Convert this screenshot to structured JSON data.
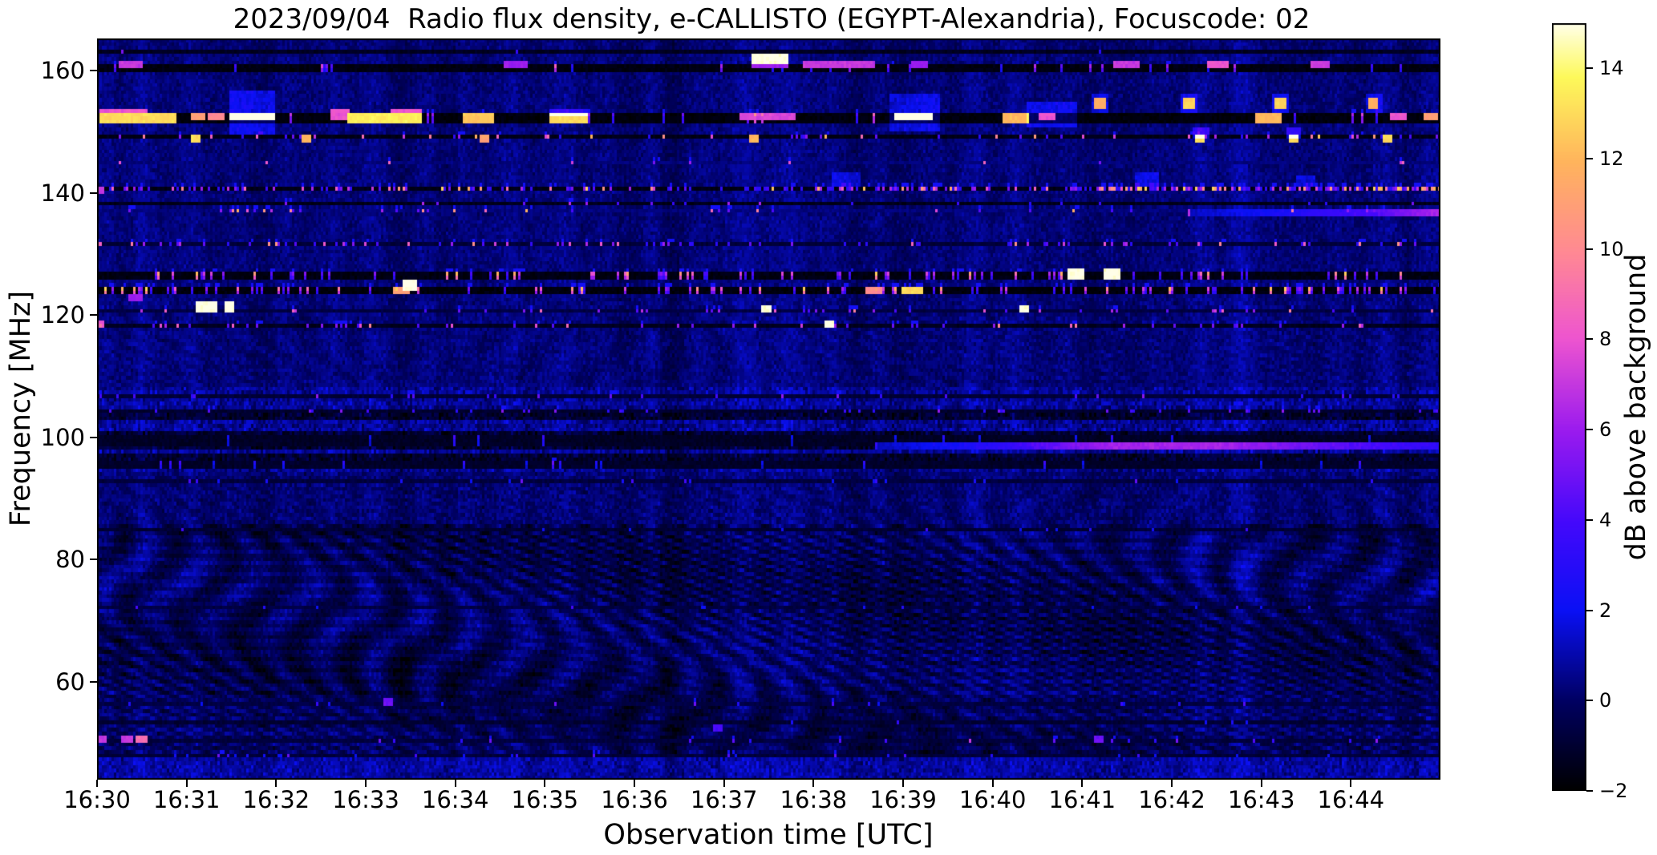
{
  "figure": {
    "background": "#ffffff"
  },
  "chart_data": {
    "type": "heatmap",
    "subtype": "radio-spectrogram",
    "title": "2023/09/04  Radio flux density, e-CALLISTO (EGYPT-Alexandria), Focuscode: 02",
    "xlabel": "Observation time [UTC]",
    "ylabel": "Frequency [MHz]",
    "x_ticks": [
      "16:30",
      "16:31",
      "16:32",
      "16:33",
      "16:34",
      "16:35",
      "16:36",
      "16:37",
      "16:38",
      "16:39",
      "16:40",
      "16:41",
      "16:42",
      "16:43",
      "16:44"
    ],
    "x_tick_minutes": [
      0,
      1,
      2,
      3,
      4,
      5,
      6,
      7,
      8,
      9,
      10,
      11,
      12,
      13,
      14
    ],
    "time_range": [
      "16:30",
      "16:45"
    ],
    "y_ticks": [
      "160",
      "140",
      "120",
      "100",
      "80",
      "60"
    ],
    "y_tick_values": [
      160,
      140,
      120,
      100,
      80,
      60
    ],
    "freq_range_mhz": [
      44.0,
      165.3
    ],
    "grid": false,
    "colorbar": {
      "label": "dB above background",
      "ticks": [
        "14",
        "12",
        "10",
        "8",
        "6",
        "4",
        "2",
        "0",
        "−2"
      ],
      "tick_values": [
        14,
        12,
        10,
        8,
        6,
        4,
        2,
        0,
        -2
      ],
      "value_range_db": [
        -2,
        15
      ],
      "colormap": "gnuplot2-like (black-blue-violet-magenta-salmon-orange-yellow-white)",
      "stops": [
        [
          0.0,
          "#000000"
        ],
        [
          0.115,
          "#000060"
        ],
        [
          0.235,
          "#0a10f5"
        ],
        [
          0.35,
          "#4408fb"
        ],
        [
          0.47,
          "#9b1bee"
        ],
        [
          0.59,
          "#ee55cf"
        ],
        [
          0.7,
          "#ff8894"
        ],
        [
          0.82,
          "#ffb45c"
        ],
        [
          0.93,
          "#fdf95a"
        ],
        [
          1.0,
          "#ffffe8"
        ]
      ]
    },
    "background_noise_db": {
      "mean": 0.28,
      "sigma": 0.5
    },
    "moire_interference": {
      "below_mhz": 86,
      "weak_bands_mhz": [
        [
          86,
          94.5
        ],
        [
          108,
          122
        ]
      ],
      "amplitude_db": 0.95
    },
    "striped_noise_band_mhz": [
      94.5,
      108
    ],
    "bright_bottom_band_mhz": [
      44.0,
      48.3
    ],
    "rfi_lines": [
      {
        "f": 162.9,
        "rows": 1,
        "base": -1.6,
        "density": 0.01,
        "dv": [
          3,
          6
        ]
      },
      {
        "f": 161.0,
        "rows": 2,
        "base": -1.9,
        "density": 0.05,
        "dv": [
          3,
          9
        ]
      },
      {
        "f": 152.4,
        "rows": 3,
        "base": -2.0,
        "density": 0.05,
        "dv": [
          4,
          11
        ]
      },
      {
        "f": 149.0,
        "rows": 1,
        "base": -1.8,
        "density": 0.12,
        "dv": [
          3,
          13
        ]
      },
      {
        "f": 145.0,
        "rows": 1,
        "base": 0.1,
        "density": 0.02,
        "dv": [
          5,
          11
        ]
      },
      {
        "f": 140.7,
        "rows": 1,
        "base": -1.8,
        "density": 0.3,
        "dv": [
          3,
          13
        ],
        "dense": [
          [
            8,
            9.6
          ],
          [
            10.8,
            15
          ]
        ]
      },
      {
        "f": 138.3,
        "rows": 1,
        "base": -1.7,
        "density": 0.03,
        "dv": [
          3,
          7
        ]
      },
      {
        "f": 137.0,
        "rows": 1,
        "base": 0.1,
        "density": 0.07,
        "dv": [
          4,
          12
        ],
        "dense": [
          [
            1.8,
            4.2
          ]
        ]
      },
      {
        "f": 131.4,
        "rows": 1,
        "base": -1.1,
        "density": 0.16,
        "dv": [
          3,
          11
        ]
      },
      {
        "f": 127.0,
        "rows": 2,
        "base": -1.9,
        "density": 0.17,
        "dv": [
          4,
          13
        ]
      },
      {
        "f": 124.1,
        "rows": 2,
        "base": -2.0,
        "density": 0.2,
        "dv": [
          4,
          13
        ]
      },
      {
        "f": 120.8,
        "rows": 1,
        "base": -0.9,
        "density": 0.08,
        "dv": [
          4,
          10
        ]
      },
      {
        "f": 118.4,
        "rows": 1,
        "base": -1.6,
        "density": 0.1,
        "dv": [
          4,
          10
        ]
      },
      {
        "f": 106.9,
        "rows": 1,
        "base": -1.1,
        "density": 0.06,
        "dv": [
          3,
          6
        ]
      },
      {
        "f": 104.3,
        "rows": 1,
        "base": -1.3,
        "density": 0.06,
        "dv": [
          3,
          6
        ]
      },
      {
        "f": 99.4,
        "rows": 3,
        "base": -1.5,
        "density": 0.03,
        "dv": [
          2,
          4
        ]
      },
      {
        "f": 95.9,
        "rows": 2,
        "base": -1.4,
        "density": 0.03,
        "dv": [
          2,
          5
        ]
      },
      {
        "f": 93.1,
        "rows": 1,
        "base": -1.0,
        "density": 0.03,
        "dv": [
          2,
          5
        ]
      },
      {
        "f": 84.8,
        "rows": 1,
        "base": -1.2,
        "density": 0.02,
        "dv": [
          2,
          4
        ]
      },
      {
        "f": 72.2,
        "rows": 1,
        "base": -0.9,
        "density": 0.02,
        "dv": [
          2,
          4
        ]
      },
      {
        "f": 56.6,
        "rows": 1,
        "base": -0.9,
        "density": 0.03,
        "dv": [
          2,
          5
        ]
      },
      {
        "f": 53.5,
        "rows": 1,
        "base": -1.2,
        "density": 0.02,
        "dv": [
          2,
          4
        ]
      },
      {
        "f": 50.6,
        "rows": 1,
        "base": -1.0,
        "density": 0.05,
        "dv": [
          3,
          8
        ]
      },
      {
        "f": 47.9,
        "rows": 1,
        "base": -1.1,
        "density": 0.04,
        "dv": [
          2,
          5
        ]
      }
    ],
    "events": [
      [
        0.03,
        0.88,
        151.9,
        152.7,
        13
      ],
      [
        0.03,
        0.55,
        152.7,
        153.3,
        8
      ],
      [
        1.05,
        1.2,
        152.0,
        152.7,
        11
      ],
      [
        1.25,
        1.42,
        152.0,
        152.7,
        10
      ],
      [
        1.5,
        1.98,
        152.3,
        153.0,
        15
      ],
      [
        1.5,
        1.98,
        150.0,
        156.6,
        1.8,
        "add"
      ],
      [
        2.62,
        2.8,
        152.0,
        153.2,
        8
      ],
      [
        2.8,
        3.62,
        151.9,
        152.7,
        13.5
      ],
      [
        3.3,
        3.62,
        152.7,
        153.2,
        8
      ],
      [
        4.1,
        4.42,
        151.9,
        152.6,
        12.5
      ],
      [
        5.08,
        5.48,
        151.9,
        152.6,
        13
      ],
      [
        5.08,
        5.48,
        152.6,
        153.6,
        3,
        "add"
      ],
      [
        7.18,
        7.78,
        152.2,
        152.9,
        7.5
      ],
      [
        8.9,
        9.32,
        152.2,
        152.9,
        14.5
      ],
      [
        8.85,
        9.4,
        150.2,
        156.2,
        1.7,
        "add"
      ],
      [
        10.12,
        10.38,
        151.9,
        152.6,
        12
      ],
      [
        10.38,
        10.92,
        150.8,
        154.6,
        1.7,
        "add"
      ],
      [
        10.52,
        10.68,
        152.2,
        152.9,
        8
      ],
      [
        12.95,
        13.2,
        151.9,
        153.1,
        12
      ],
      [
        14.45,
        14.62,
        152.2,
        152.9,
        8
      ],
      [
        14.82,
        14.96,
        152.0,
        152.8,
        11
      ],
      [
        0.25,
        0.5,
        160.7,
        161.4,
        7
      ],
      [
        4.55,
        4.8,
        160.7,
        161.3,
        6
      ],
      [
        7.33,
        7.7,
        161.3,
        162.3,
        15
      ],
      [
        7.33,
        7.7,
        160.5,
        161.3,
        6
      ],
      [
        7.9,
        8.66,
        160.7,
        161.5,
        7
      ],
      [
        9.1,
        9.25,
        160.7,
        161.3,
        6
      ],
      [
        11.35,
        11.62,
        160.7,
        161.4,
        7
      ],
      [
        12.4,
        12.62,
        160.9,
        161.6,
        8
      ],
      [
        13.55,
        13.75,
        160.7,
        161.3,
        7
      ],
      [
        11.15,
        11.25,
        154.2,
        155.0,
        10
      ],
      [
        11.12,
        11.28,
        153.6,
        155.8,
        1.6,
        "add"
      ],
      [
        12.15,
        12.25,
        154.2,
        155.0,
        11
      ],
      [
        12.12,
        12.28,
        153.6,
        155.8,
        1.8,
        "add"
      ],
      [
        13.17,
        13.27,
        154.2,
        155.0,
        11
      ],
      [
        13.14,
        13.3,
        153.6,
        155.8,
        1.8,
        "add"
      ],
      [
        14.2,
        14.3,
        154.2,
        155.0,
        10
      ],
      [
        14.17,
        14.33,
        153.6,
        155.8,
        1.6,
        "add"
      ],
      [
        1.05,
        1.13,
        148.7,
        149.4,
        13
      ],
      [
        2.3,
        2.38,
        148.7,
        149.4,
        12
      ],
      [
        4.3,
        4.38,
        148.7,
        149.4,
        11
      ],
      [
        7.3,
        7.37,
        148.7,
        149.4,
        12
      ],
      [
        12.28,
        12.36,
        148.7,
        149.4,
        13
      ],
      [
        12.25,
        12.4,
        149.4,
        150.2,
        3,
        "add"
      ],
      [
        13.32,
        13.4,
        148.7,
        149.4,
        13
      ],
      [
        13.3,
        13.44,
        149.4,
        150.2,
        3,
        "add"
      ],
      [
        14.38,
        14.46,
        148.7,
        149.4,
        13
      ],
      [
        1.12,
        1.32,
        120.6,
        121.9,
        15
      ],
      [
        1.44,
        1.52,
        120.6,
        121.9,
        15
      ],
      [
        3.32,
        3.48,
        123.6,
        124.6,
        11
      ],
      [
        3.44,
        3.56,
        124.6,
        125.4,
        15
      ],
      [
        7.42,
        7.5,
        120.8,
        121.6,
        15
      ],
      [
        8.13,
        8.2,
        118.1,
        118.9,
        15
      ],
      [
        10.3,
        10.38,
        120.5,
        121.2,
        15
      ],
      [
        10.85,
        11.02,
        126.4,
        127.6,
        15
      ],
      [
        11.25,
        11.4,
        126.4,
        127.3,
        15
      ],
      [
        9.0,
        9.2,
        123.6,
        124.4,
        13
      ],
      [
        8.6,
        8.75,
        123.6,
        124.4,
        10
      ],
      [
        8.2,
        8.5,
        141.2,
        143.0,
        1.5,
        "add"
      ],
      [
        11.6,
        11.85,
        141.2,
        143.2,
        1.6,
        "add"
      ],
      [
        13.4,
        13.6,
        141.2,
        142.6,
        1.4,
        "add"
      ],
      [
        0,
        0.1,
        50.2,
        51.0,
        7
      ],
      [
        0.28,
        0.38,
        50.2,
        51.0,
        7
      ],
      [
        0.45,
        0.55,
        50.2,
        51.0,
        9
      ],
      [
        0,
        0.08,
        118.0,
        119.0,
        8
      ],
      [
        0,
        0.06,
        140.3,
        141.0,
        7
      ],
      [
        0.35,
        0.5,
        122.5,
        123.3,
        6
      ],
      [
        3.2,
        3.28,
        56.3,
        57.0,
        5
      ],
      [
        6.9,
        6.97,
        52.0,
        52.7,
        4
      ],
      [
        11.15,
        11.22,
        50.3,
        51.0,
        5
      ]
    ],
    "drifting_streaks": [
      {
        "f0": 136.4,
        "f1": 137.2,
        "points": [
          [
            12.2,
            1.2
          ],
          [
            13.2,
            2.5
          ],
          [
            14.2,
            4.0
          ],
          [
            15,
            6.5
          ]
        ]
      },
      {
        "f0": 98.3,
        "f1": 99.1,
        "points": [
          [
            8.7,
            1.2
          ],
          [
            10,
            3.0
          ],
          [
            11.3,
            6.2
          ],
          [
            12.5,
            6.3
          ],
          [
            13.6,
            4.8
          ],
          [
            15,
            3.2
          ]
        ]
      }
    ]
  }
}
